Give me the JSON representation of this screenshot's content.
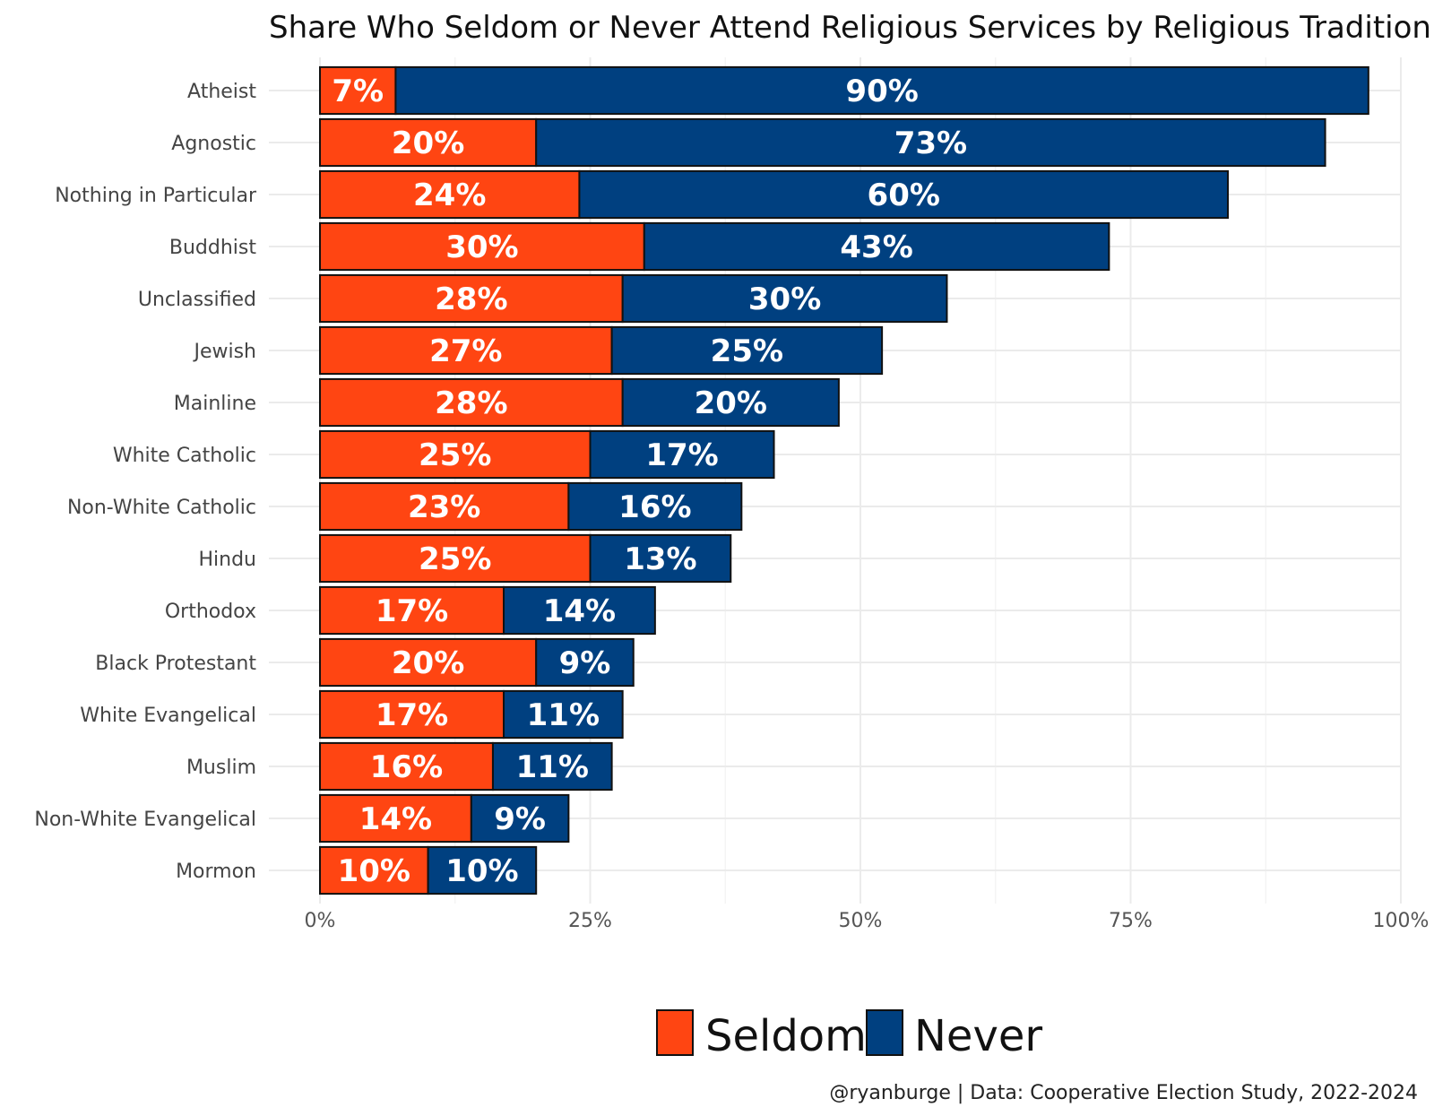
{
  "chart_data": {
    "type": "bar",
    "orientation": "horizontal",
    "stacked": true,
    "title": "Share Who Seldom or Never Attend Religious Services by Religious Tradition",
    "caption": "@ryanburge | Data: Cooperative Election Study, 2022-2024",
    "categories": [
      "Atheist",
      "Agnostic",
      "Nothing in Particular",
      "Buddhist",
      "Unclassified",
      "Jewish",
      "Mainline",
      "White Catholic",
      "Non-White Catholic",
      "Hindu",
      "Orthodox",
      "Black Protestant",
      "White Evangelical",
      "Muslim",
      "Non-White Evangelical",
      "Mormon"
    ],
    "series": [
      {
        "name": "Seldom",
        "color": "#ff4512",
        "values": [
          7,
          20,
          24,
          30,
          28,
          27,
          28,
          25,
          23,
          25,
          17,
          20,
          17,
          16,
          14,
          10
        ],
        "labels": [
          "7%",
          "20%",
          "24%",
          "30%",
          "28%",
          "27%",
          "28%",
          "25%",
          "23%",
          "25%",
          "17%",
          "20%",
          "17%",
          "16%",
          "14%",
          "10%"
        ]
      },
      {
        "name": "Never",
        "color": "#004080",
        "values": [
          90,
          73,
          60,
          43,
          30,
          25,
          20,
          17,
          16,
          13,
          14,
          9,
          11,
          11,
          9,
          10
        ],
        "labels": [
          "90%",
          "73%",
          "60%",
          "43%",
          "30%",
          "25%",
          "20%",
          "17%",
          "16%",
          "13%",
          "14%",
          "9%",
          "11%",
          "11%",
          "9%",
          "10%"
        ]
      }
    ],
    "xlim": [
      0,
      100
    ],
    "x_ticks": [
      0,
      25,
      50,
      75,
      100
    ],
    "x_tick_labels": [
      "0%",
      "25%",
      "50%",
      "75%",
      "100%"
    ],
    "grid": true,
    "legend_position": "bottom"
  }
}
